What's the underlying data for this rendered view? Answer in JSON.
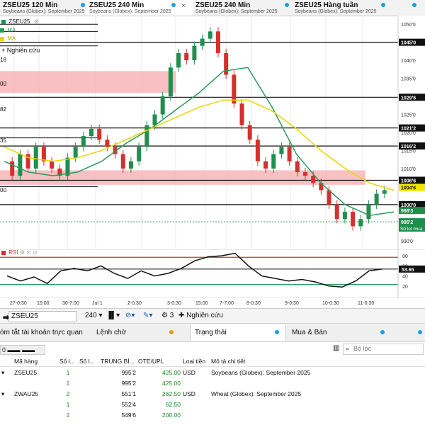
{
  "tabs": [
    {
      "title": "ZSEU25 120 Min",
      "subtitle": "Soybeans (Globex): September 2025",
      "dot": "#1aa0e0"
    },
    {
      "title": "ZSEU25 240 Min",
      "subtitle": "Soybeans (Globex): September 2025",
      "dot": "#1aa0e0"
    },
    {
      "title": "ZSEU25 240 Min",
      "subtitle": "Soybeans (Globex): September 2025",
      "dot": ""
    },
    {
      "title": "ZSEU25 Hàng tuần",
      "subtitle": "Soybeans (Globex): September 2025",
      "dot": "#1aa0e0"
    }
  ],
  "tab_close": "×",
  "chart": {
    "symbol": "ZSEU25",
    "ma_labels": [
      "MA",
      "MA"
    ],
    "ma_colors": [
      "#2a9a5a",
      "#e6d800"
    ],
    "research_label": "+ Nghiên cứu",
    "left_labels": [
      "18",
      "00",
      "82",
      "35",
      "00"
    ],
    "price_ticks": [
      "1050'0",
      "1045'0",
      "1040'0",
      "1035'0",
      "1030'0",
      "1025'0",
      "1020'0",
      "1015'0",
      "1010'0",
      "1005'0",
      "1000'0",
      "995'0",
      "990'0"
    ],
    "price_markers": [
      {
        "text": "1045'0",
        "style": "line"
      },
      {
        "text": "1029'6",
        "style": "line"
      },
      {
        "text": "1021'2",
        "style": "line"
      },
      {
        "text": "1016'2",
        "style": "line"
      },
      {
        "text": "1006'6",
        "style": "line"
      },
      {
        "text": "1004'6",
        "style": "yellow"
      },
      {
        "text": "1000'0",
        "style": "line"
      },
      {
        "text": "998'3",
        "style": "green"
      },
      {
        "text": "995'2",
        "style": "green"
      }
    ],
    "lot_label": "Số lot mua",
    "x_ticks": [
      "27-0:30",
      "15:00",
      "30-7:00",
      "Jul 1",
      "2-0:30",
      "3-0:30",
      "15:00",
      "7-7:00",
      "8-0:30",
      "9-0:30",
      "10-0:30",
      "11-0:30"
    ],
    "colors": {
      "up": "#1f8f4e",
      "down": "#d62f2f",
      "zone": "#f7b5b8",
      "ma_fast": "#2a9a5a",
      "ma_slow": "#e6d800",
      "rsi_line": "#111111",
      "rsi_upper": "#c0392b",
      "rsi_lower": "#2a9a5a"
    }
  },
  "chart_data": {
    "type": "line",
    "title": "ZSEU25",
    "series": [
      {
        "name": "MA",
        "values": [
          1012,
          1009,
          1008,
          1009,
          1012,
          1017,
          1021,
          1026,
          1031,
          1037,
          1038,
          1027,
          1014,
          1006,
          1000,
          997,
          998
        ]
      },
      {
        "name": "MA",
        "values": [
          1016,
          1013,
          1012,
          1013,
          1015,
          1018,
          1021,
          1024,
          1027,
          1029,
          1029,
          1026,
          1021,
          1015,
          1010,
          1006,
          1004
        ]
      }
    ],
    "ylim": [
      988,
      1052
    ],
    "rsi": {
      "label": "RSI",
      "value_label": "53.65",
      "ticks": [
        "80",
        "60",
        "40",
        "20"
      ],
      "values": [
        40,
        30,
        38,
        25,
        50,
        55,
        50,
        60,
        45,
        35,
        50,
        40,
        45,
        55,
        70,
        78,
        80,
        85,
        60,
        40,
        35,
        30,
        33,
        28,
        20,
        18,
        30,
        50,
        53.65
      ],
      "ylim": [
        0,
        90
      ]
    }
  },
  "toolbar": {
    "symbol": "ZSEU25",
    "interval": "240",
    "studies_count": "3",
    "research": "Nghiên cứu"
  },
  "panel": {
    "tabs": [
      {
        "label": "óm tắt tài khoản trực quan",
        "dot": ""
      },
      {
        "label": "Lệnh chờ",
        "dot": "#e0a000"
      },
      {
        "label": "Trạng thái",
        "dot": "#1aa0e0"
      },
      {
        "label": "Mua & Bán",
        "dot": "#1aa0e0"
      }
    ],
    "account": "0 ▬▬ ▬▬",
    "filter_placeholder": "Bộ lọc",
    "columns": [
      "Mã hàng",
      "Số l...",
      "Số l...",
      "TRUNG BÌ...",
      "OTE/UPL",
      "Loại tiền",
      "Mô tả chi tiết"
    ],
    "rows": [
      {
        "expander": "▾",
        "symbol": "ZSEU25",
        "qty1": "1",
        "qty2": "",
        "avg": "995'2",
        "ote": "425.00",
        "currency": "USD",
        "desc": "Soybeans (Globex): September 2025"
      },
      {
        "expander": "",
        "symbol": "",
        "qty1": "1",
        "qty2": "",
        "avg": "995'2",
        "ote": "425.00",
        "currency": "",
        "desc": ""
      },
      {
        "expander": "▾",
        "symbol": "ZWAU25",
        "qty1": "2",
        "qty2": "",
        "avg": "551'1",
        "ote": "262.50",
        "currency": "USD",
        "desc": "Wheat (Globex): September 2025"
      },
      {
        "expander": "",
        "symbol": "",
        "qty1": "1",
        "qty2": "",
        "avg": "552'4",
        "ote": "62.50",
        "currency": "",
        "desc": ""
      },
      {
        "expander": "",
        "symbol": "",
        "qty1": "1",
        "qty2": "",
        "avg": "549'6",
        "ote": "200.00",
        "currency": "",
        "desc": ""
      }
    ]
  }
}
